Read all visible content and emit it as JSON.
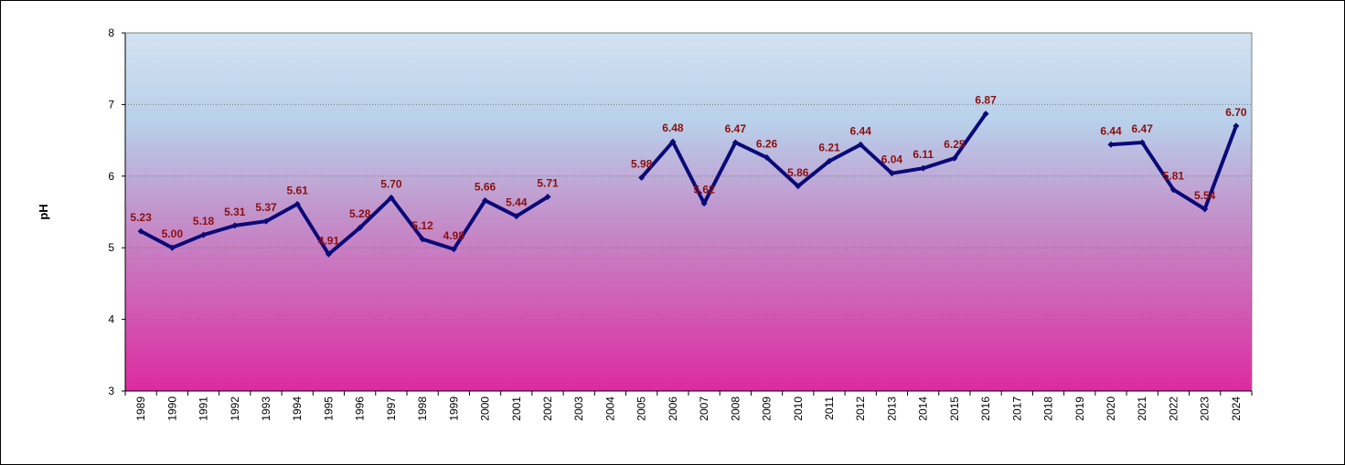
{
  "chart_data": {
    "type": "line",
    "title": "",
    "xlabel": "",
    "ylabel": "pH",
    "ylim": [
      3,
      8
    ],
    "yticks": [
      "3",
      "4",
      "5",
      "6",
      "7",
      "8"
    ],
    "grid": "horizontal dotted",
    "legend": "none",
    "colors": {
      "line": "#0a0a78",
      "data_label": "#8b0f0f",
      "background_top": "#cfe0f0",
      "background_mid": "#b0a8d8",
      "background_bottom": "#dd2aa0"
    },
    "categories": [
      "1989",
      "1990",
      "1991",
      "1992",
      "1993",
      "1994",
      "1995",
      "1996",
      "1997",
      "1998",
      "1999",
      "2000",
      "2001",
      "2002",
      "2003",
      "2004",
      "2005",
      "2006",
      "2007",
      "2008",
      "2009",
      "2010",
      "2011",
      "2012",
      "2013",
      "2014",
      "2015",
      "2016",
      "2017",
      "2018",
      "2019",
      "2020",
      "2021",
      "2022",
      "2023",
      "2024"
    ],
    "series": [
      {
        "values": [
          5.23,
          5.0,
          5.18,
          5.31,
          5.37,
          5.61,
          4.91,
          5.28,
          5.7,
          5.12,
          4.98,
          5.66,
          5.44,
          5.71,
          null,
          null,
          5.98,
          6.48,
          5.62,
          6.47,
          6.26,
          5.86,
          6.21,
          6.44,
          6.04,
          6.11,
          6.25,
          6.87,
          null,
          null,
          null,
          6.44,
          6.47,
          5.81,
          5.54,
          6.7
        ],
        "labels": [
          "5.23",
          "5.00",
          "5.18",
          "5.31",
          "5.37",
          "5.61",
          "4.91",
          "5.28",
          "5.70",
          "5.12",
          "4.98",
          "5.66",
          "5.44",
          "5.71",
          "",
          "",
          "5.98",
          "6.48",
          "5.62",
          "6.47",
          "6.26",
          "5.86",
          "6.21",
          "6.44",
          "6.04",
          "6.11",
          "6.25",
          "6.87",
          "",
          "",
          "",
          "6.44",
          "6.47",
          "5.81",
          "5.54",
          "6.70"
        ]
      }
    ]
  }
}
